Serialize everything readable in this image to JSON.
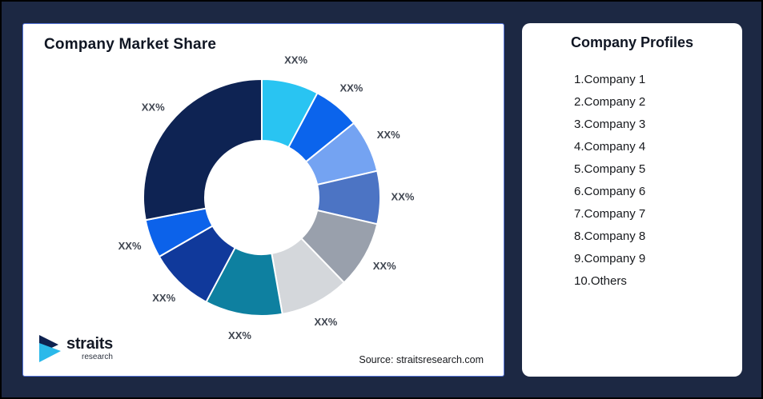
{
  "colors": {
    "page_background": "#1C2843",
    "page_border": "#000000",
    "card_background": "#FFFFFF",
    "chart_card_border": "#5373D9",
    "title_text": "#101623",
    "segment_label_text": "#3F4550"
  },
  "chart_panel": {
    "title": "Company Market Share",
    "source_note": "Source: straitsresearch.com",
    "logo": {
      "brand": "straits",
      "sub": "research",
      "navy": "#0E2250",
      "cyan": "#2BB9EA"
    }
  },
  "chart_data": {
    "type": "donut",
    "title": "Company Market Share",
    "start_angle_deg": 0,
    "direction": "clockwise",
    "outer_radius_px": 148,
    "inner_radius_ratio": 0.48,
    "label_radius_px": 176,
    "label_color": "#3F4550",
    "segments": [
      {
        "label": "XX%",
        "sweep_deg": 28,
        "color": "#29C4F2"
      },
      {
        "label": "XX%",
        "sweep_deg": 23,
        "color": "#0B64EC"
      },
      {
        "label": "XX%",
        "sweep_deg": 26,
        "color": "#74A3F2"
      },
      {
        "label": "XX%",
        "sweep_deg": 26,
        "color": "#4C74C4"
      },
      {
        "label": "XX%",
        "sweep_deg": 33,
        "color": "#99A0AC"
      },
      {
        "label": "XX%",
        "sweep_deg": 34,
        "color": "#D4D7DB"
      },
      {
        "label": "XX%",
        "sweep_deg": 38,
        "color": "#0E80A0"
      },
      {
        "label": "XX%",
        "sweep_deg": 32,
        "color": "#10399B"
      },
      {
        "label": "XX%",
        "sweep_deg": 19,
        "color": "#0C62EA"
      },
      {
        "label": "XX%",
        "sweep_deg": 101,
        "color": "#0E2353"
      }
    ]
  },
  "profiles_panel": {
    "title": "Company Profiles",
    "items": [
      "1.Company 1",
      "2.Company 2",
      "3.Company 3",
      "4.Company 4",
      "5.Company 5",
      "6.Company 6",
      "7.Company 7",
      "8.Company 8",
      "9.Company 9",
      "10.Others"
    ]
  }
}
